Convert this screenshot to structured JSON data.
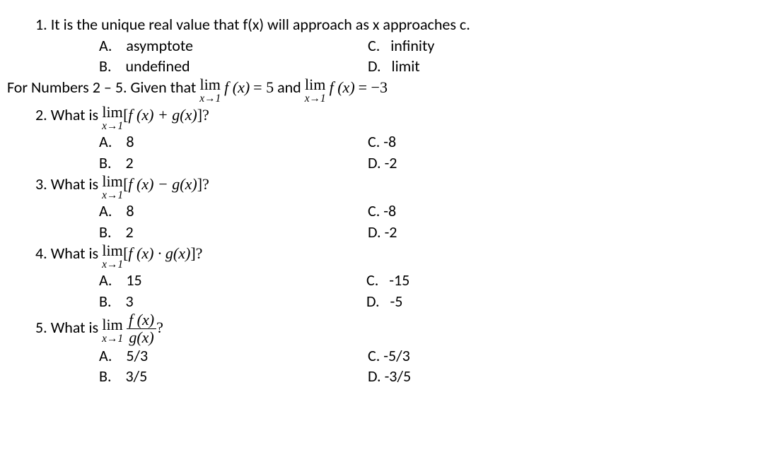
{
  "q1": {
    "num": "1.",
    "text": "It is the unique real value that f(x) will approach as x approaches c.",
    "A": "asymptote",
    "B": "undefined",
    "C": "infinity",
    "D": "limit"
  },
  "context": {
    "lead": "For Numbers 2 – 5. Given that ",
    "lim_label": "lim",
    "lim_sub": "x→1",
    "f_expr": "f (x)",
    "eq1": " = 5",
    "and": " and ",
    "eq2": " = −3"
  },
  "q2": {
    "num": "2.",
    "lead": "What is ",
    "expr_open": "[",
    "expr_body": "f (x) + g(x)",
    "expr_close": "]?",
    "A": "8",
    "B": "2",
    "C": "-8",
    "D": "-2"
  },
  "q3": {
    "num": "3.",
    "lead": "What is ",
    "expr_body": "f (x) − g(x)",
    "A": "8",
    "B": "2",
    "C": "-8",
    "D": "-2"
  },
  "q4": {
    "num": "4.",
    "lead": "What is ",
    "expr_body": "f (x) · g(x)",
    "A": "15",
    "B": "3",
    "C": "-15",
    "D": "-5"
  },
  "q5": {
    "num": "5.",
    "lead": "What is ",
    "frac_num": "f (x)",
    "frac_den": "g(x)",
    "tail": "?",
    "A": "5/3",
    "B": "3/5",
    "C": "-5/3",
    "D": "-3/5"
  },
  "labels": {
    "A": "A.",
    "B": "B.",
    "C": "C.",
    "D": "D."
  }
}
